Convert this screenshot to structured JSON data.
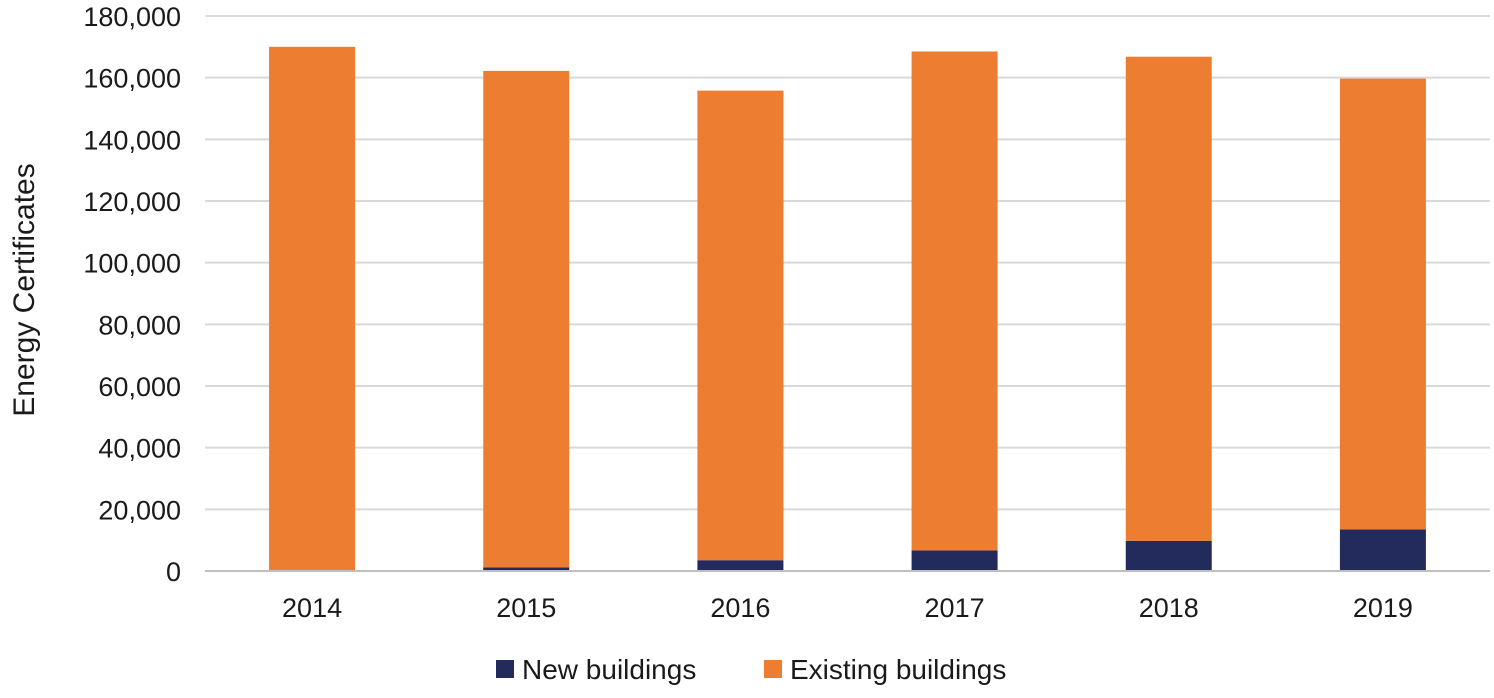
{
  "chart_data": {
    "type": "bar",
    "stacked": true,
    "title": "",
    "xlabel": "",
    "ylabel": "Energy Certificates",
    "ylim": [
      0,
      180000
    ],
    "y_ticks": [
      0,
      20000,
      40000,
      60000,
      80000,
      100000,
      120000,
      140000,
      160000,
      180000
    ],
    "y_tick_labels": [
      "0",
      "20,000",
      "40,000",
      "60,000",
      "80,000",
      "100,000",
      "120,000",
      "140,000",
      "160,000",
      "180,000"
    ],
    "categories": [
      "2014",
      "2015",
      "2016",
      "2017",
      "2018",
      "2019"
    ],
    "series": [
      {
        "name": "New buildings",
        "color": "#232a5c",
        "values": [
          300,
          1200,
          3500,
          6700,
          9800,
          13500
        ]
      },
      {
        "name": "Existing buildings",
        "color": "#ed7d31",
        "values": [
          169700,
          161000,
          152300,
          161800,
          157000,
          146200
        ]
      }
    ],
    "grid": true,
    "legend_position": "bottom-center",
    "gridline_color": "#d9d9d9",
    "axis_color": "#bfbfbf"
  }
}
